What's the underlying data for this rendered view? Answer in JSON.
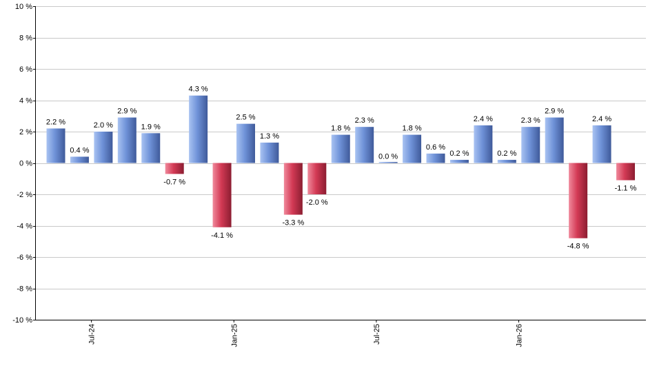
{
  "chart_data": {
    "type": "bar",
    "y_axis": {
      "ylim": [
        -10,
        10
      ],
      "ticks": [
        10,
        8,
        6,
        4,
        2,
        0,
        -2,
        -4,
        -6,
        -8,
        -10
      ],
      "tick_labels": [
        "10 %",
        "8 %",
        "6 %",
        "4 %",
        "2 %",
        "0 %",
        "-2 %",
        "-4 %",
        "-6 %",
        "-8 %",
        "-10 %"
      ]
    },
    "x_axis": {
      "tick_labels": [
        {
          "label": "Jul-24",
          "after_bar_index": 1
        },
        {
          "label": "Jan-25",
          "after_bar_index": 7
        },
        {
          "label": "Jul-25",
          "after_bar_index": 13
        },
        {
          "label": "Jan-26",
          "after_bar_index": 19
        }
      ]
    },
    "grid": true,
    "values": [
      2.2,
      0.4,
      2.0,
      2.9,
      1.9,
      -0.7,
      4.3,
      -4.1,
      2.5,
      1.3,
      -3.3,
      -2.0,
      1.8,
      2.3,
      0.0,
      1.8,
      0.6,
      0.2,
      2.4,
      0.2,
      2.3,
      2.9,
      -4.8,
      2.4,
      -1.1
    ],
    "data_labels": [
      "2.2 %",
      "0.4 %",
      "2.0 %",
      "2.9 %",
      "1.9 %",
      "-0.7 %",
      "4.3 %",
      "-4.1 %",
      "2.5 %",
      "1.3 %",
      "-3.3 %",
      "-2.0 %",
      "1.8 %",
      "2.3 %",
      "0.0 %",
      "1.8 %",
      "0.6 %",
      "0.2 %",
      "2.4 %",
      "0.2 %",
      "2.3 %",
      "2.9 %",
      "-4.8 %",
      "2.4 %",
      "-1.1 %"
    ],
    "colors": {
      "positive_light": "#a9c3f2",
      "positive_mid": "#6f92d8",
      "positive_dark": "#3f5a9a",
      "negative_light": "#f08a9c",
      "negative_mid": "#d33a55",
      "negative_dark": "#8c1d31",
      "grid": "#c8c8c8",
      "axis": "#000000"
    }
  }
}
